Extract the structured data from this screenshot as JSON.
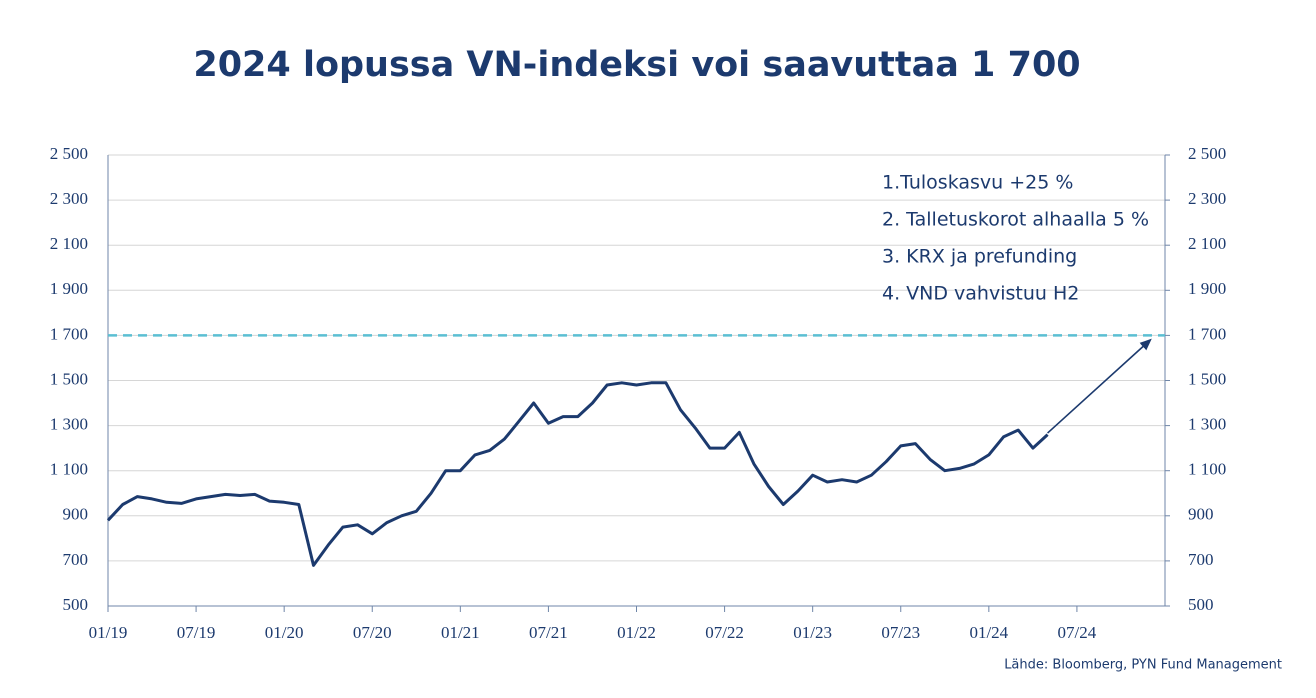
{
  "chart_data": {
    "type": "line",
    "title": "2024 lopussa VN-indeksi voi saavuttaa 1 700",
    "source": "Lähde: Bloomberg, PYN Fund Management",
    "notes": [
      "1.Tuloskasvu +25 %",
      "2. Talletuskorot alhaalla 5 %",
      "3. KRX ja prefunding",
      "4. VND vahvistuu H2"
    ],
    "x": [
      "2019-01",
      "2019-02",
      "2019-03",
      "2019-04",
      "2019-05",
      "2019-06",
      "2019-07",
      "2019-08",
      "2019-09",
      "2019-10",
      "2019-11",
      "2019-12",
      "2020-01",
      "2020-02",
      "2020-03",
      "2020-04",
      "2020-05",
      "2020-06",
      "2020-07",
      "2020-08",
      "2020-09",
      "2020-10",
      "2020-11",
      "2020-12",
      "2021-01",
      "2021-02",
      "2021-03",
      "2021-04",
      "2021-05",
      "2021-06",
      "2021-07",
      "2021-08",
      "2021-09",
      "2021-10",
      "2021-11",
      "2021-12",
      "2022-01",
      "2022-02",
      "2022-03",
      "2022-04",
      "2022-05",
      "2022-06",
      "2022-07",
      "2022-08",
      "2022-09",
      "2022-10",
      "2022-11",
      "2022-12",
      "2023-01",
      "2023-02",
      "2023-03",
      "2023-04",
      "2023-05",
      "2023-06",
      "2023-07",
      "2023-08",
      "2023-09",
      "2023-10",
      "2023-11",
      "2023-12",
      "2024-01",
      "2024-02",
      "2024-03",
      "2024-04",
      "2024-05"
    ],
    "series": [
      {
        "name": "VN-indeksi",
        "color": "#1c3a6e",
        "values": [
          880,
          950,
          985,
          975,
          960,
          955,
          975,
          985,
          995,
          990,
          995,
          965,
          960,
          950,
          680,
          770,
          850,
          860,
          820,
          870,
          900,
          920,
          1000,
          1100,
          1100,
          1170,
          1190,
          1240,
          1320,
          1400,
          1310,
          1340,
          1340,
          1400,
          1480,
          1490,
          1480,
          1490,
          1490,
          1370,
          1290,
          1200,
          1200,
          1270,
          1130,
          1030,
          950,
          1010,
          1080,
          1050,
          1060,
          1050,
          1080,
          1140,
          1210,
          1220,
          1150,
          1100,
          1110,
          1130,
          1170,
          1250,
          1280,
          1200,
          1260
        ]
      }
    ],
    "target": {
      "value": 1700,
      "color": "#5bbfd2"
    },
    "arrow": {
      "x": [
        "2024-05",
        "2024-12"
      ],
      "values": [
        1267,
        1680
      ]
    },
    "xlim": [
      "2019-01",
      "2025-01"
    ],
    "xticks": [
      {
        "value": "2019-01",
        "label": "01/19"
      },
      {
        "value": "2019-07",
        "label": "07/19"
      },
      {
        "value": "2020-01",
        "label": "01/20"
      },
      {
        "value": "2020-07",
        "label": "07/20"
      },
      {
        "value": "2021-01",
        "label": "01/21"
      },
      {
        "value": "2021-07",
        "label": "07/21"
      },
      {
        "value": "2022-01",
        "label": "01/22"
      },
      {
        "value": "2022-07",
        "label": "07/22"
      },
      {
        "value": "2023-01",
        "label": "01/23"
      },
      {
        "value": "2023-07",
        "label": "07/23"
      },
      {
        "value": "2024-01",
        "label": "01/24"
      },
      {
        "value": "2024-07",
        "label": "07/24"
      }
    ],
    "ylim": [
      500,
      2500
    ],
    "yticks": [
      500,
      700,
      900,
      {
        "value": 1100,
        "label": "1 100"
      },
      {
        "value": 1300,
        "label": "1 300"
      },
      {
        "value": 1500,
        "label": "1 500"
      },
      {
        "value": 1700,
        "label": "1 700"
      },
      {
        "value": 1900,
        "label": "1 900"
      },
      {
        "value": 2100,
        "label": "2 100"
      },
      {
        "value": 2300,
        "label": "2 300"
      },
      {
        "value": 2500,
        "label": "2 500"
      }
    ],
    "y2lim": [
      500,
      2500
    ],
    "y2ticks": [
      500,
      700,
      900,
      {
        "value": 1100,
        "label": "1 100"
      },
      {
        "value": 1300,
        "label": "1 300"
      },
      {
        "value": 1500,
        "label": "1 500"
      },
      {
        "value": 1700,
        "label": "1 700"
      },
      {
        "value": 1900,
        "label": "1 900"
      },
      {
        "value": 2100,
        "label": "2 100"
      },
      {
        "value": 2300,
        "label": "2 300"
      },
      {
        "value": 2500,
        "label": "2 500"
      }
    ],
    "grid": true
  }
}
